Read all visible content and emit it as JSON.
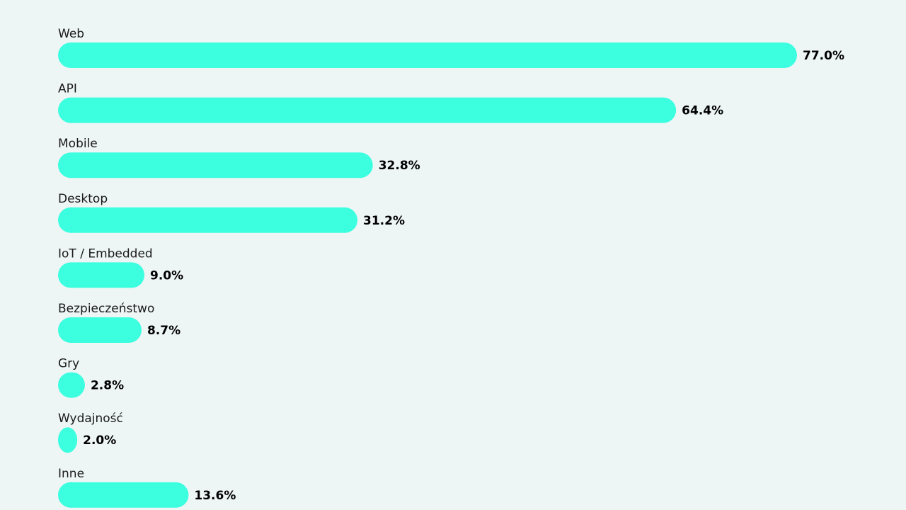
{
  "chart_data": {
    "type": "bar",
    "orientation": "horizontal",
    "categories": [
      "Web",
      "API",
      "Mobile",
      "Desktop",
      "IoT / Embedded",
      "Bezpieczeństwo",
      "Gry",
      "Wydajność",
      "Inne"
    ],
    "values": [
      77.0,
      64.4,
      32.8,
      31.2,
      9.0,
      8.7,
      2.8,
      2.0,
      13.6
    ],
    "value_labels": [
      "77.0%",
      "64.4%",
      "32.8%",
      "31.2%",
      "9.0%",
      "8.7%",
      "2.8%",
      "2.0%",
      "13.6%"
    ],
    "unit": "%",
    "xlim": [
      0,
      77
    ],
    "grid": false,
    "legend": "none"
  },
  "colors": {
    "background": "#eef5f5",
    "bar": "#3cffe0",
    "label_text": "#1a1a1a",
    "value_text": "#000000"
  }
}
